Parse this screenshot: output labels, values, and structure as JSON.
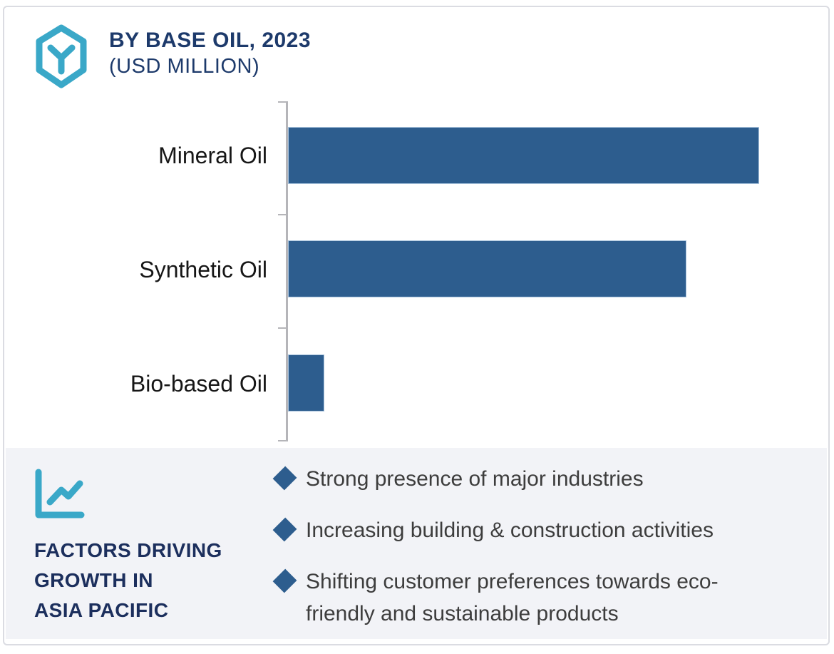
{
  "header": {
    "icon_name": "hexagon-cube-icon",
    "title": "BY BASE OIL, 2023",
    "subtitle": "(USD MILLION)",
    "title_color": "#1D3A6B",
    "accent_color": "#38A8C8"
  },
  "chart_data": {
    "type": "bar",
    "orientation": "horizontal",
    "title": "BY BASE OIL, 2023",
    "unit_label": "(USD MILLION)",
    "categories": [
      "Mineral Oil",
      "Synthetic Oil",
      "Bio-based Oil"
    ],
    "values": [
      87,
      73.5,
      6.7
    ],
    "value_basis": "relative bar length, % of plot width (no numeric axis labels shown)",
    "xlim": [
      0,
      100
    ],
    "grid": "off",
    "legend": "none",
    "bar_color": "#2D5D8E",
    "bar_border_color": "#AAC4DD",
    "axis_color": "#B5B5B9",
    "label_color": "#161616"
  },
  "panel": {
    "background_color": "#F2F3F7",
    "icon_name": "line-chart-icon",
    "icon_color": "#3AA8C8",
    "title_lines": [
      "FACTORS DRIVING",
      "GROWTH IN",
      "ASIA PACIFIC"
    ],
    "title_color": "#1C2F5D",
    "bullet_marker": "diamond",
    "bullet_color": "#2D5D8E",
    "text_color": "#3D3D3D",
    "bullets": [
      {
        "line1": "Strong presence of major industries",
        "line2": ""
      },
      {
        "line1": "Increasing building & construction activities",
        "line2": ""
      },
      {
        "line1": "Shifting customer preferences towards eco-",
        "line2": "friendly and sustainable products"
      }
    ]
  }
}
